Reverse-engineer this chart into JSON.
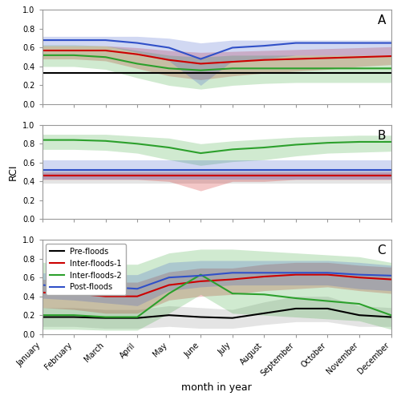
{
  "months": [
    "January",
    "February",
    "March",
    "April",
    "May",
    "June",
    "July",
    "August",
    "September",
    "October",
    "November",
    "December"
  ],
  "panel_A": {
    "pre_median": [
      0.33,
      0.33,
      0.33,
      0.33,
      0.33,
      0.33,
      0.33,
      0.33,
      0.33,
      0.33,
      0.33,
      0.33
    ],
    "pre_p5": [
      0.33,
      0.33,
      0.33,
      0.33,
      0.33,
      0.33,
      0.33,
      0.33,
      0.33,
      0.33,
      0.33,
      0.33
    ],
    "pre_p95": [
      0.33,
      0.33,
      0.33,
      0.33,
      0.33,
      0.33,
      0.33,
      0.33,
      0.33,
      0.33,
      0.33,
      0.33
    ],
    "if1_median": [
      0.57,
      0.57,
      0.57,
      0.53,
      0.47,
      0.43,
      0.45,
      0.47,
      0.48,
      0.49,
      0.5,
      0.51
    ],
    "if1_p5": [
      0.48,
      0.48,
      0.46,
      0.38,
      0.3,
      0.26,
      0.3,
      0.33,
      0.35,
      0.37,
      0.4,
      0.42
    ],
    "if1_p95": [
      0.62,
      0.62,
      0.62,
      0.6,
      0.57,
      0.55,
      0.56,
      0.57,
      0.58,
      0.59,
      0.6,
      0.61
    ],
    "if2_median": [
      0.52,
      0.52,
      0.5,
      0.43,
      0.38,
      0.36,
      0.38,
      0.38,
      0.38,
      0.38,
      0.38,
      0.38
    ],
    "if2_p5": [
      0.4,
      0.4,
      0.37,
      0.28,
      0.2,
      0.16,
      0.2,
      0.22,
      0.23,
      0.23,
      0.23,
      0.23
    ],
    "if2_p95": [
      0.63,
      0.63,
      0.62,
      0.57,
      0.52,
      0.5,
      0.52,
      0.52,
      0.52,
      0.52,
      0.52,
      0.52
    ],
    "post_median": [
      0.68,
      0.68,
      0.68,
      0.65,
      0.6,
      0.48,
      0.6,
      0.62,
      0.65,
      0.65,
      0.65,
      0.65
    ],
    "post_p5": [
      0.62,
      0.62,
      0.62,
      0.55,
      0.46,
      0.2,
      0.46,
      0.48,
      0.52,
      0.52,
      0.52,
      0.52
    ],
    "post_p95": [
      0.72,
      0.72,
      0.72,
      0.72,
      0.7,
      0.65,
      0.68,
      0.68,
      0.68,
      0.68,
      0.68,
      0.68
    ]
  },
  "panel_B": {
    "pre_median": [
      0.46,
      0.46,
      0.46,
      0.46,
      0.46,
      0.46,
      0.46,
      0.46,
      0.46,
      0.46,
      0.46,
      0.46
    ],
    "pre_p5": [
      0.38,
      0.38,
      0.38,
      0.38,
      0.38,
      0.38,
      0.38,
      0.38,
      0.38,
      0.38,
      0.38,
      0.38
    ],
    "pre_p95": [
      0.52,
      0.52,
      0.52,
      0.52,
      0.52,
      0.52,
      0.52,
      0.52,
      0.52,
      0.52,
      0.52,
      0.52
    ],
    "if1_median": [
      0.46,
      0.46,
      0.46,
      0.46,
      0.46,
      0.46,
      0.46,
      0.46,
      0.46,
      0.46,
      0.46,
      0.46
    ],
    "if1_p5": [
      0.42,
      0.42,
      0.42,
      0.42,
      0.4,
      0.3,
      0.4,
      0.4,
      0.42,
      0.42,
      0.42,
      0.42
    ],
    "if1_p95": [
      0.5,
      0.5,
      0.5,
      0.5,
      0.5,
      0.5,
      0.5,
      0.5,
      0.5,
      0.5,
      0.5,
      0.5
    ],
    "if2_median": [
      0.84,
      0.84,
      0.83,
      0.8,
      0.76,
      0.7,
      0.74,
      0.76,
      0.79,
      0.81,
      0.82,
      0.82
    ],
    "if2_p5": [
      0.74,
      0.74,
      0.73,
      0.7,
      0.63,
      0.57,
      0.61,
      0.63,
      0.67,
      0.7,
      0.71,
      0.72
    ],
    "if2_p95": [
      0.9,
      0.9,
      0.9,
      0.88,
      0.86,
      0.8,
      0.83,
      0.85,
      0.87,
      0.88,
      0.89,
      0.89
    ],
    "post_median": [
      0.52,
      0.52,
      0.52,
      0.52,
      0.52,
      0.52,
      0.52,
      0.52,
      0.52,
      0.52,
      0.52,
      0.52
    ],
    "post_p5": [
      0.42,
      0.42,
      0.42,
      0.42,
      0.42,
      0.42,
      0.42,
      0.42,
      0.42,
      0.42,
      0.42,
      0.42
    ],
    "post_p95": [
      0.62,
      0.62,
      0.62,
      0.62,
      0.62,
      0.62,
      0.62,
      0.62,
      0.62,
      0.62,
      0.62,
      0.62
    ]
  },
  "panel_C": {
    "pre_median": [
      0.18,
      0.18,
      0.17,
      0.17,
      0.2,
      0.18,
      0.17,
      0.22,
      0.27,
      0.27,
      0.2,
      0.18
    ],
    "pre_p5": [
      0.08,
      0.08,
      0.06,
      0.06,
      0.08,
      0.06,
      0.06,
      0.1,
      0.13,
      0.13,
      0.08,
      0.08
    ],
    "pre_p95": [
      0.28,
      0.28,
      0.26,
      0.26,
      0.3,
      0.28,
      0.26,
      0.34,
      0.4,
      0.4,
      0.3,
      0.28
    ],
    "if1_median": [
      0.44,
      0.43,
      0.4,
      0.4,
      0.52,
      0.56,
      0.58,
      0.61,
      0.63,
      0.63,
      0.6,
      0.58
    ],
    "if1_p5": [
      0.28,
      0.26,
      0.22,
      0.22,
      0.36,
      0.4,
      0.42,
      0.46,
      0.48,
      0.5,
      0.46,
      0.43
    ],
    "if1_p95": [
      0.58,
      0.57,
      0.55,
      0.55,
      0.66,
      0.7,
      0.7,
      0.74,
      0.76,
      0.76,
      0.73,
      0.71
    ],
    "if2_median": [
      0.2,
      0.2,
      0.18,
      0.18,
      0.43,
      0.63,
      0.43,
      0.42,
      0.38,
      0.35,
      0.32,
      0.2
    ],
    "if2_p5": [
      0.05,
      0.05,
      0.04,
      0.04,
      0.22,
      0.42,
      0.22,
      0.2,
      0.18,
      0.16,
      0.14,
      0.05
    ],
    "if2_p95": [
      0.76,
      0.76,
      0.74,
      0.74,
      0.86,
      0.9,
      0.9,
      0.88,
      0.86,
      0.84,
      0.82,
      0.76
    ],
    "post_median": [
      0.52,
      0.5,
      0.5,
      0.48,
      0.6,
      0.62,
      0.65,
      0.65,
      0.65,
      0.65,
      0.63,
      0.62
    ],
    "post_p5": [
      0.38,
      0.36,
      0.33,
      0.3,
      0.46,
      0.5,
      0.52,
      0.52,
      0.52,
      0.52,
      0.48,
      0.46
    ],
    "post_p95": [
      0.65,
      0.63,
      0.63,
      0.63,
      0.76,
      0.78,
      0.78,
      0.78,
      0.78,
      0.78,
      0.76,
      0.73
    ]
  },
  "colors": {
    "pre": "#000000",
    "if1": "#cc0000",
    "if2": "#2ca02c",
    "post": "#3050c8"
  },
  "fill_colors": {
    "pre": "#888888",
    "if1": "#cc0000",
    "if2": "#2ca02c",
    "post": "#3050c8"
  },
  "fill_alpha": 0.22,
  "line_width": 1.5,
  "panel_labels": [
    "A",
    "B",
    "C"
  ],
  "ylabel": "RCI",
  "xlabel": "month in year",
  "ylim": [
    0.0,
    1.0
  ],
  "yticks": [
    0.0,
    0.2,
    0.4,
    0.6,
    0.8,
    1.0
  ],
  "legend_labels": [
    "Pre-floods",
    "Inter-floods-1",
    "Inter-floods-2",
    "Post-floods"
  ]
}
